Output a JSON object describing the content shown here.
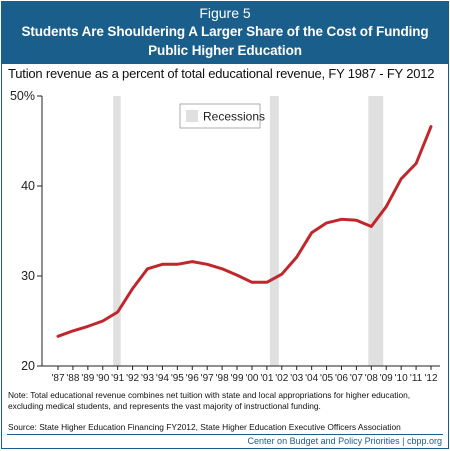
{
  "header": {
    "figure_label": "Figure 5",
    "title_line1": "Students Are Shouldering A Larger Share of the Cost of Funding",
    "title_line2": "Public Higher Education"
  },
  "chart_data": {
    "type": "line",
    "title": "Tution revenue as a percent of total educational revenue, FY 1987 - FY 2012",
    "xlabel": "",
    "ylabel": "",
    "x": [
      "'87",
      "'88",
      "'89",
      "'90",
      "'91",
      "'92",
      "'93",
      "'94",
      "'95",
      "'96",
      "'97",
      "'98",
      "'99",
      "'00",
      "'01",
      "'02",
      "'03",
      "'04",
      "'05",
      "'06",
      "'07",
      "'08",
      "'09",
      "'10",
      "'11",
      "'12"
    ],
    "series": [
      {
        "values": [
          23.3,
          23.9,
          24.4,
          25.0,
          26.0,
          28.6,
          30.8,
          31.3,
          31.3,
          31.6,
          31.3,
          30.8,
          30.1,
          29.3,
          29.3,
          30.2,
          32.1,
          34.8,
          35.9,
          36.3,
          36.2,
          35.5,
          37.7,
          40.8,
          42.5,
          46.6
        ],
        "color": "#c0272d"
      }
    ],
    "ylim": [
      20,
      50
    ],
    "yticks": [
      20,
      30,
      40,
      50
    ],
    "ytick_labels": [
      "20",
      "30",
      "40",
      "50%"
    ],
    "recessions": [
      {
        "start": 3.7,
        "end": 4.2
      },
      {
        "start": 14.2,
        "end": 14.8
      },
      {
        "start": 20.8,
        "end": 21.8
      }
    ],
    "legend": {
      "label": "Recessions",
      "position": "top-left",
      "color": "#e0e0e0"
    },
    "grid": false
  },
  "notes": {
    "note": "Note: Total educational revenue combines net tuition with state and local appropriations for higher education, excluding medical students, and represents the vast majority of instructional funding.",
    "source": "Source: State Higher Education Financing FY2012, State Higher Education Executive Officers Association"
  },
  "footer": {
    "credit": "Center on Budget and Policy Priorities | cbpp.org"
  }
}
